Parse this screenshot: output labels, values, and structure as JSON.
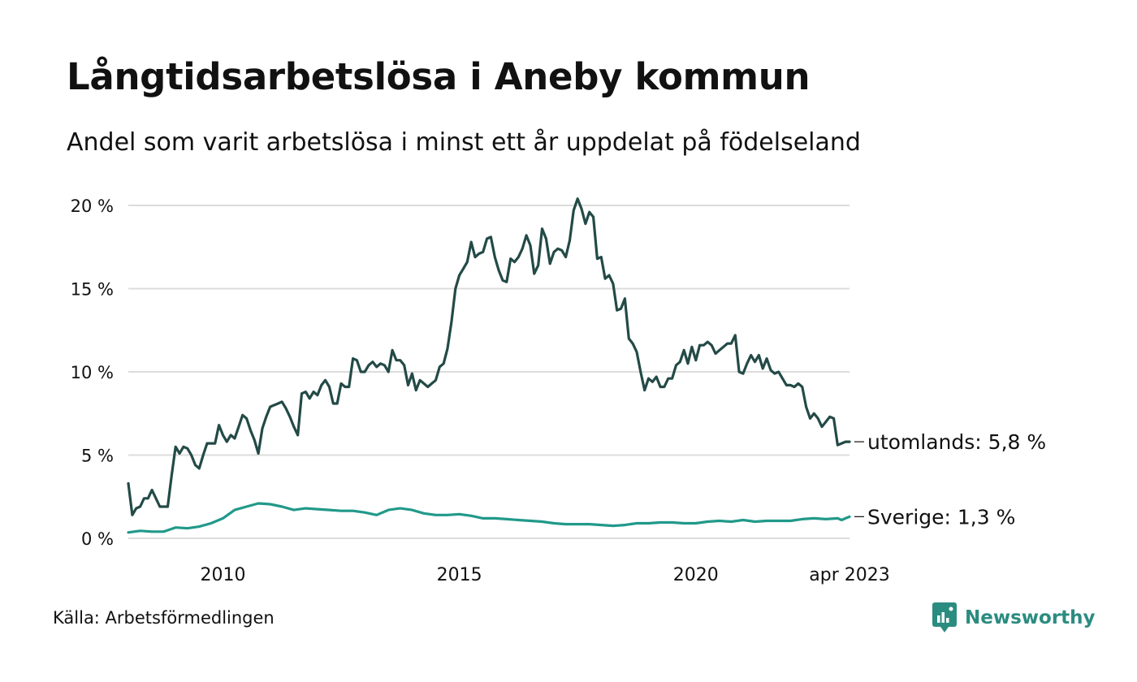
{
  "title": "Långtidsarbetslösa i Aneby kommun",
  "subtitle": "Andel som varit arbetslösa i minst ett år uppdelat på födelseland",
  "source": "Källa: Arbetsförmedlingen",
  "brand": {
    "name": "Newsworthy",
    "icon": "newsworthy-logo-icon",
    "color": "#2b8c80"
  },
  "chart_data": {
    "type": "line",
    "ylim": [
      0,
      20
    ],
    "y_ticks": [
      {
        "value": 0,
        "label": "0 %"
      },
      {
        "value": 5,
        "label": "5 %"
      },
      {
        "value": 10,
        "label": "10 %"
      },
      {
        "value": 15,
        "label": "15 %"
      },
      {
        "value": 20,
        "label": "20 %"
      }
    ],
    "x_range": [
      "2008-01",
      "2023-04"
    ],
    "x_ticks": [
      {
        "value": "2010-01",
        "label": "2010"
      },
      {
        "value": "2015-01",
        "label": "2015"
      },
      {
        "value": "2020-01",
        "label": "2020"
      },
      {
        "value": "2023-04",
        "label": "apr 2023"
      }
    ],
    "grid": true,
    "series": [
      {
        "name": "utomlands",
        "end_label": "utomlands: 5,8 %",
        "color": "#234a47",
        "points": [
          [
            "2008-01",
            3.3
          ],
          [
            "2008-02",
            1.4
          ],
          [
            "2008-03",
            1.8
          ],
          [
            "2008-04",
            1.9
          ],
          [
            "2008-05",
            2.4
          ],
          [
            "2008-06",
            2.4
          ],
          [
            "2008-07",
            2.9
          ],
          [
            "2008-08",
            2.4
          ],
          [
            "2008-09",
            1.9
          ],
          [
            "2008-10",
            1.9
          ],
          [
            "2008-11",
            1.9
          ],
          [
            "2008-12",
            3.8
          ],
          [
            "2009-01",
            5.5
          ],
          [
            "2009-02",
            5.1
          ],
          [
            "2009-03",
            5.5
          ],
          [
            "2009-04",
            5.4
          ],
          [
            "2009-05",
            5.0
          ],
          [
            "2009-06",
            4.4
          ],
          [
            "2009-07",
            4.2
          ],
          [
            "2009-08",
            5.0
          ],
          [
            "2009-09",
            5.7
          ],
          [
            "2009-10",
            5.7
          ],
          [
            "2009-11",
            5.7
          ],
          [
            "2009-12",
            6.8
          ],
          [
            "2010-01",
            6.2
          ],
          [
            "2010-02",
            5.8
          ],
          [
            "2010-03",
            6.2
          ],
          [
            "2010-04",
            6.0
          ],
          [
            "2010-05",
            6.7
          ],
          [
            "2010-06",
            7.4
          ],
          [
            "2010-07",
            7.2
          ],
          [
            "2010-08",
            6.5
          ],
          [
            "2010-09",
            5.9
          ],
          [
            "2010-10",
            5.1
          ],
          [
            "2010-11",
            6.6
          ],
          [
            "2010-12",
            7.3
          ],
          [
            "2011-01",
            7.9
          ],
          [
            "2011-02",
            8.0
          ],
          [
            "2011-03",
            8.1
          ],
          [
            "2011-04",
            8.2
          ],
          [
            "2011-05",
            7.8
          ],
          [
            "2011-06",
            7.3
          ],
          [
            "2011-07",
            6.7
          ],
          [
            "2011-08",
            6.2
          ],
          [
            "2011-09",
            8.7
          ],
          [
            "2011-10",
            8.8
          ],
          [
            "2011-11",
            8.4
          ],
          [
            "2011-12",
            8.8
          ],
          [
            "2012-01",
            8.6
          ],
          [
            "2012-02",
            9.2
          ],
          [
            "2012-03",
            9.5
          ],
          [
            "2012-04",
            9.1
          ],
          [
            "2012-05",
            8.1
          ],
          [
            "2012-06",
            8.1
          ],
          [
            "2012-07",
            9.3
          ],
          [
            "2012-08",
            9.1
          ],
          [
            "2012-09",
            9.1
          ],
          [
            "2012-10",
            10.8
          ],
          [
            "2012-11",
            10.7
          ],
          [
            "2012-12",
            10.0
          ],
          [
            "2013-01",
            10.0
          ],
          [
            "2013-02",
            10.4
          ],
          [
            "2013-03",
            10.6
          ],
          [
            "2013-04",
            10.3
          ],
          [
            "2013-05",
            10.5
          ],
          [
            "2013-06",
            10.4
          ],
          [
            "2013-07",
            10.0
          ],
          [
            "2013-08",
            11.3
          ],
          [
            "2013-09",
            10.7
          ],
          [
            "2013-10",
            10.7
          ],
          [
            "2013-11",
            10.4
          ],
          [
            "2013-12",
            9.2
          ],
          [
            "2014-01",
            9.9
          ],
          [
            "2014-02",
            8.9
          ],
          [
            "2014-03",
            9.5
          ],
          [
            "2014-04",
            9.3
          ],
          [
            "2014-05",
            9.1
          ],
          [
            "2014-06",
            9.3
          ],
          [
            "2014-07",
            9.5
          ],
          [
            "2014-08",
            10.3
          ],
          [
            "2014-09",
            10.5
          ],
          [
            "2014-10",
            11.4
          ],
          [
            "2014-11",
            13.0
          ],
          [
            "2014-12",
            15.0
          ],
          [
            "2015-01",
            15.8
          ],
          [
            "2015-02",
            16.2
          ],
          [
            "2015-03",
            16.6
          ],
          [
            "2015-04",
            17.8
          ],
          [
            "2015-05",
            16.9
          ],
          [
            "2015-06",
            17.1
          ],
          [
            "2015-07",
            17.2
          ],
          [
            "2015-08",
            18.0
          ],
          [
            "2015-09",
            18.1
          ],
          [
            "2015-10",
            16.9
          ],
          [
            "2015-11",
            16.1
          ],
          [
            "2015-12",
            15.5
          ],
          [
            "2016-01",
            15.4
          ],
          [
            "2016-02",
            16.8
          ],
          [
            "2016-03",
            16.6
          ],
          [
            "2016-04",
            16.9
          ],
          [
            "2016-05",
            17.4
          ],
          [
            "2016-06",
            18.2
          ],
          [
            "2016-07",
            17.6
          ],
          [
            "2016-08",
            15.9
          ],
          [
            "2016-09",
            16.4
          ],
          [
            "2016-10",
            18.6
          ],
          [
            "2016-11",
            18.0
          ],
          [
            "2016-12",
            16.5
          ],
          [
            "2017-01",
            17.2
          ],
          [
            "2017-02",
            17.4
          ],
          [
            "2017-03",
            17.3
          ],
          [
            "2017-04",
            16.9
          ],
          [
            "2017-05",
            17.9
          ],
          [
            "2017-06",
            19.7
          ],
          [
            "2017-07",
            20.4
          ],
          [
            "2017-08",
            19.8
          ],
          [
            "2017-09",
            18.9
          ],
          [
            "2017-10",
            19.6
          ],
          [
            "2017-11",
            19.3
          ],
          [
            "2017-12",
            16.8
          ],
          [
            "2018-01",
            16.9
          ],
          [
            "2018-02",
            15.6
          ],
          [
            "2018-03",
            15.8
          ],
          [
            "2018-04",
            15.3
          ],
          [
            "2018-05",
            13.7
          ],
          [
            "2018-06",
            13.8
          ],
          [
            "2018-07",
            14.4
          ],
          [
            "2018-08",
            12.0
          ],
          [
            "2018-09",
            11.7
          ],
          [
            "2018-10",
            11.2
          ],
          [
            "2018-11",
            10.0
          ],
          [
            "2018-12",
            8.9
          ],
          [
            "2019-01",
            9.6
          ],
          [
            "2019-02",
            9.4
          ],
          [
            "2019-03",
            9.7
          ],
          [
            "2019-04",
            9.1
          ],
          [
            "2019-05",
            9.1
          ],
          [
            "2019-06",
            9.6
          ],
          [
            "2019-07",
            9.6
          ],
          [
            "2019-08",
            10.4
          ],
          [
            "2019-09",
            10.6
          ],
          [
            "2019-10",
            11.3
          ],
          [
            "2019-11",
            10.5
          ],
          [
            "2019-12",
            11.5
          ],
          [
            "2020-01",
            10.7
          ],
          [
            "2020-02",
            11.6
          ],
          [
            "2020-03",
            11.6
          ],
          [
            "2020-04",
            11.8
          ],
          [
            "2020-05",
            11.6
          ],
          [
            "2020-06",
            11.1
          ],
          [
            "2020-07",
            11.3
          ],
          [
            "2020-08",
            11.5
          ],
          [
            "2020-09",
            11.7
          ],
          [
            "2020-10",
            11.7
          ],
          [
            "2020-11",
            12.2
          ],
          [
            "2020-12",
            10.0
          ],
          [
            "2021-01",
            9.9
          ],
          [
            "2021-02",
            10.5
          ],
          [
            "2021-03",
            11.0
          ],
          [
            "2021-04",
            10.6
          ],
          [
            "2021-05",
            11.0
          ],
          [
            "2021-06",
            10.2
          ],
          [
            "2021-07",
            10.8
          ],
          [
            "2021-08",
            10.1
          ],
          [
            "2021-09",
            9.9
          ],
          [
            "2021-10",
            10.0
          ],
          [
            "2021-11",
            9.6
          ],
          [
            "2021-12",
            9.2
          ],
          [
            "2022-01",
            9.2
          ],
          [
            "2022-02",
            9.1
          ],
          [
            "2022-03",
            9.3
          ],
          [
            "2022-04",
            9.1
          ],
          [
            "2022-05",
            7.9
          ],
          [
            "2022-06",
            7.2
          ],
          [
            "2022-07",
            7.5
          ],
          [
            "2022-08",
            7.2
          ],
          [
            "2022-09",
            6.7
          ],
          [
            "2022-10",
            7.0
          ],
          [
            "2022-11",
            7.3
          ],
          [
            "2022-12",
            7.2
          ],
          [
            "2023-01",
            5.6
          ],
          [
            "2023-02",
            5.7
          ],
          [
            "2023-03",
            5.8
          ],
          [
            "2023-04",
            5.8
          ]
        ]
      },
      {
        "name": "Sverige",
        "end_label": "Sverige: 1,3 %",
        "color": "#21998a",
        "points": [
          [
            "2008-01",
            0.35
          ],
          [
            "2008-04",
            0.45
          ],
          [
            "2008-07",
            0.4
          ],
          [
            "2008-10",
            0.4
          ],
          [
            "2009-01",
            0.65
          ],
          [
            "2009-04",
            0.6
          ],
          [
            "2009-07",
            0.7
          ],
          [
            "2009-10",
            0.9
          ],
          [
            "2010-01",
            1.2
          ],
          [
            "2010-04",
            1.7
          ],
          [
            "2010-07",
            1.9
          ],
          [
            "2010-10",
            2.1
          ],
          [
            "2011-01",
            2.05
          ],
          [
            "2011-04",
            1.9
          ],
          [
            "2011-07",
            1.7
          ],
          [
            "2011-10",
            1.8
          ],
          [
            "2012-01",
            1.75
          ],
          [
            "2012-04",
            1.7
          ],
          [
            "2012-07",
            1.65
          ],
          [
            "2012-10",
            1.65
          ],
          [
            "2013-01",
            1.55
          ],
          [
            "2013-04",
            1.4
          ],
          [
            "2013-07",
            1.7
          ],
          [
            "2013-10",
            1.8
          ],
          [
            "2014-01",
            1.7
          ],
          [
            "2014-04",
            1.5
          ],
          [
            "2014-07",
            1.4
          ],
          [
            "2014-10",
            1.4
          ],
          [
            "2015-01",
            1.45
          ],
          [
            "2015-04",
            1.35
          ],
          [
            "2015-07",
            1.2
          ],
          [
            "2015-10",
            1.2
          ],
          [
            "2016-01",
            1.15
          ],
          [
            "2016-04",
            1.1
          ],
          [
            "2016-07",
            1.05
          ],
          [
            "2016-10",
            1.0
          ],
          [
            "2017-01",
            0.9
          ],
          [
            "2017-04",
            0.85
          ],
          [
            "2017-07",
            0.85
          ],
          [
            "2017-10",
            0.85
          ],
          [
            "2018-01",
            0.8
          ],
          [
            "2018-04",
            0.75
          ],
          [
            "2018-07",
            0.8
          ],
          [
            "2018-10",
            0.9
          ],
          [
            "2019-01",
            0.9
          ],
          [
            "2019-04",
            0.95
          ],
          [
            "2019-07",
            0.95
          ],
          [
            "2019-10",
            0.9
          ],
          [
            "2020-01",
            0.9
          ],
          [
            "2020-04",
            1.0
          ],
          [
            "2020-07",
            1.05
          ],
          [
            "2020-10",
            1.0
          ],
          [
            "2021-01",
            1.1
          ],
          [
            "2021-04",
            1.0
          ],
          [
            "2021-07",
            1.05
          ],
          [
            "2021-10",
            1.05
          ],
          [
            "2022-01",
            1.05
          ],
          [
            "2022-04",
            1.15
          ],
          [
            "2022-07",
            1.2
          ],
          [
            "2022-10",
            1.15
          ],
          [
            "2023-01",
            1.2
          ],
          [
            "2023-02",
            1.1
          ],
          [
            "2023-03",
            1.2
          ],
          [
            "2023-04",
            1.3
          ]
        ]
      }
    ]
  }
}
